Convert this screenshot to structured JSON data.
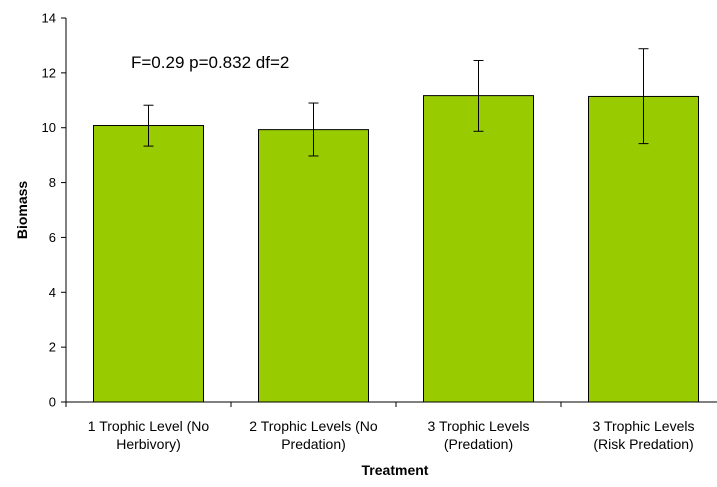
{
  "chart_data": {
    "type": "bar",
    "categories": [
      [
        "1 Trophic Level (No",
        "Herbivory)"
      ],
      [
        "2 Trophic Levels (No",
        "Predation)"
      ],
      [
        "3 Trophic Levels",
        "(Predation)"
      ],
      [
        "3 Trophic Levels",
        "(Risk Predation)"
      ]
    ],
    "values": [
      10.08,
      9.93,
      11.17,
      11.14
    ],
    "error_low": [
      9.33,
      8.97,
      9.87,
      9.42
    ],
    "error_high": [
      10.82,
      10.9,
      12.45,
      12.88
    ],
    "xlabel": "Treatment",
    "ylabel": "Biomass",
    "ylim": [
      0,
      14
    ],
    "yticks": [
      0,
      2,
      4,
      6,
      8,
      10,
      12,
      14
    ],
    "grid": false,
    "annotation": "F=0.29 p=0.832 df=2",
    "colors": {
      "bar_fill": "#99cc00",
      "bar_stroke": "#000000",
      "axis": "#000000"
    }
  }
}
